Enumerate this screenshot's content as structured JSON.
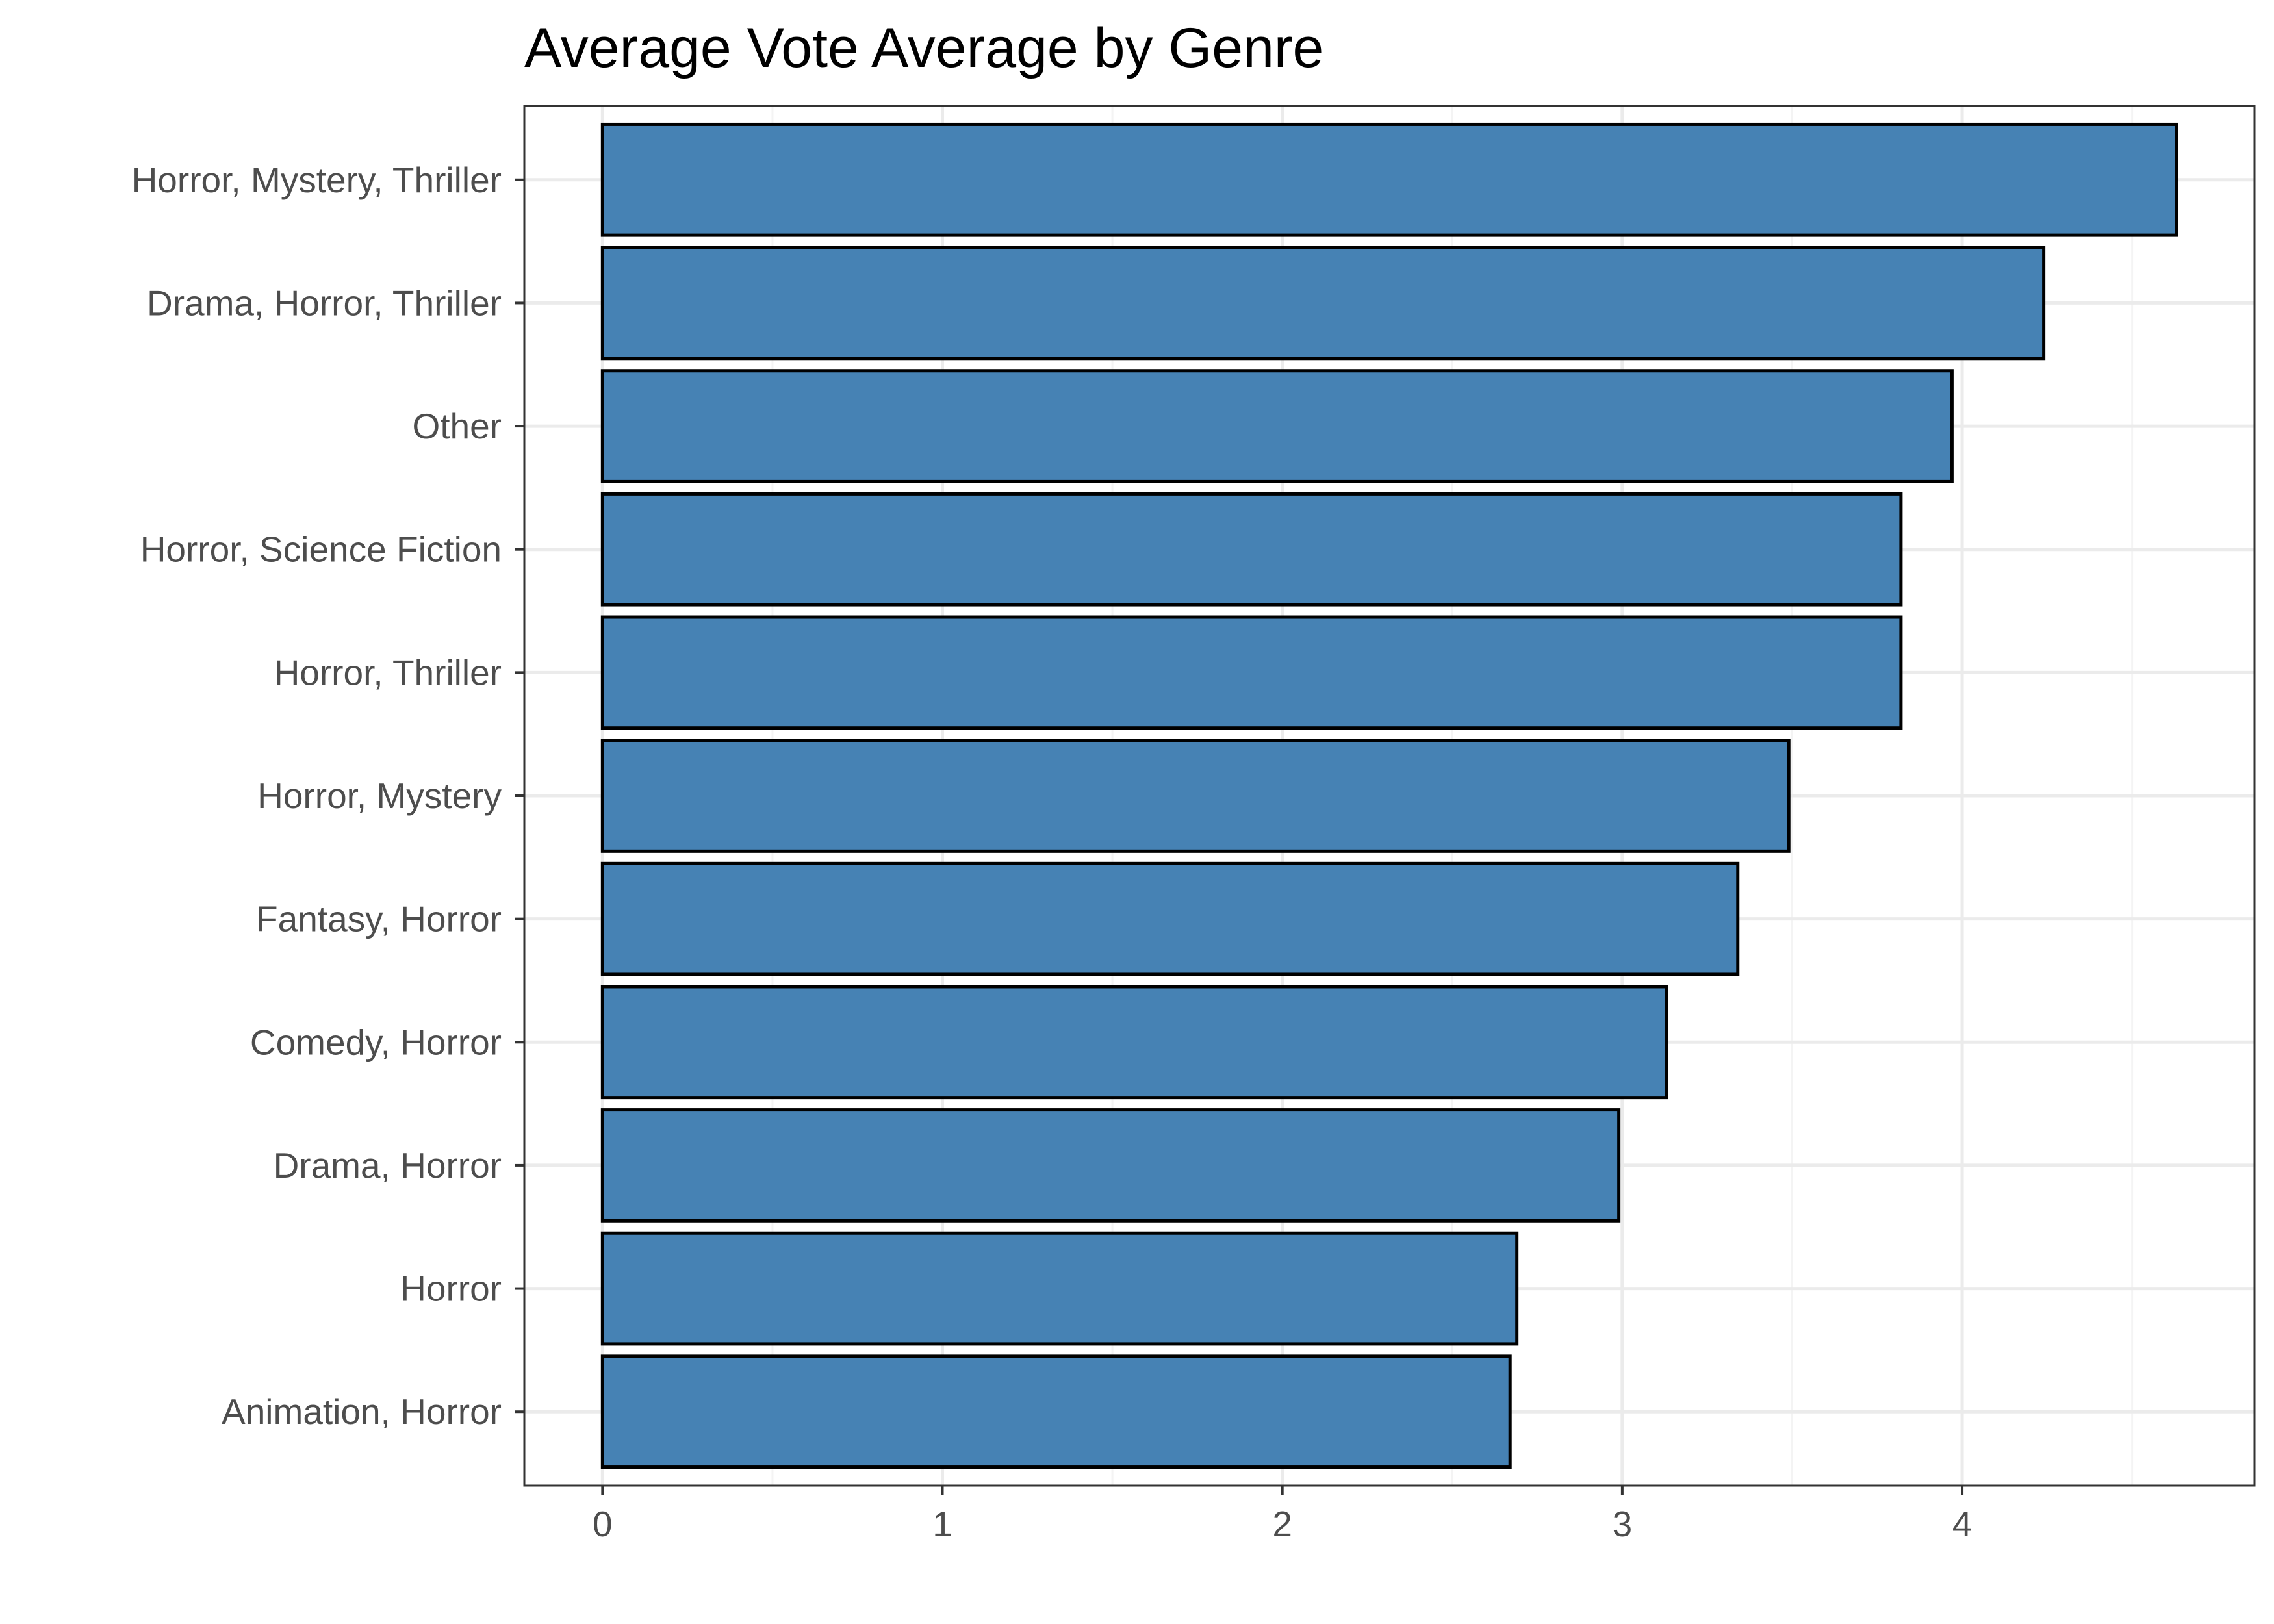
{
  "chart_data": {
    "type": "bar",
    "orientation": "horizontal",
    "title": "Average Vote Average by Genre",
    "xlabel": "",
    "ylabel": "",
    "categories": [
      "Horror, Mystery, Thriller",
      "Drama, Horror, Thriller",
      "Other",
      "Horror, Science Fiction",
      "Horror, Thriller",
      "Horror, Mystery",
      "Fantasy, Horror",
      "Comedy, Horror",
      "Drama, Horror",
      "Horror",
      "Animation, Horror"
    ],
    "values": [
      4.63,
      4.24,
      3.97,
      3.82,
      3.82,
      3.49,
      3.34,
      3.13,
      2.99,
      2.69,
      2.67
    ],
    "x_ticks": [
      "0",
      "1",
      "2",
      "3",
      "4"
    ],
    "xlim": [
      -0.23,
      4.86
    ],
    "grid": true,
    "colors": {
      "bar_fill": "#4682b4",
      "bar_border": "#000000",
      "grid_major": "#ebebeb",
      "grid_minor": "#f4f4f4",
      "panel_border": "#333333",
      "tick_text": "#4d4d4d",
      "title_text": "#000000"
    }
  }
}
